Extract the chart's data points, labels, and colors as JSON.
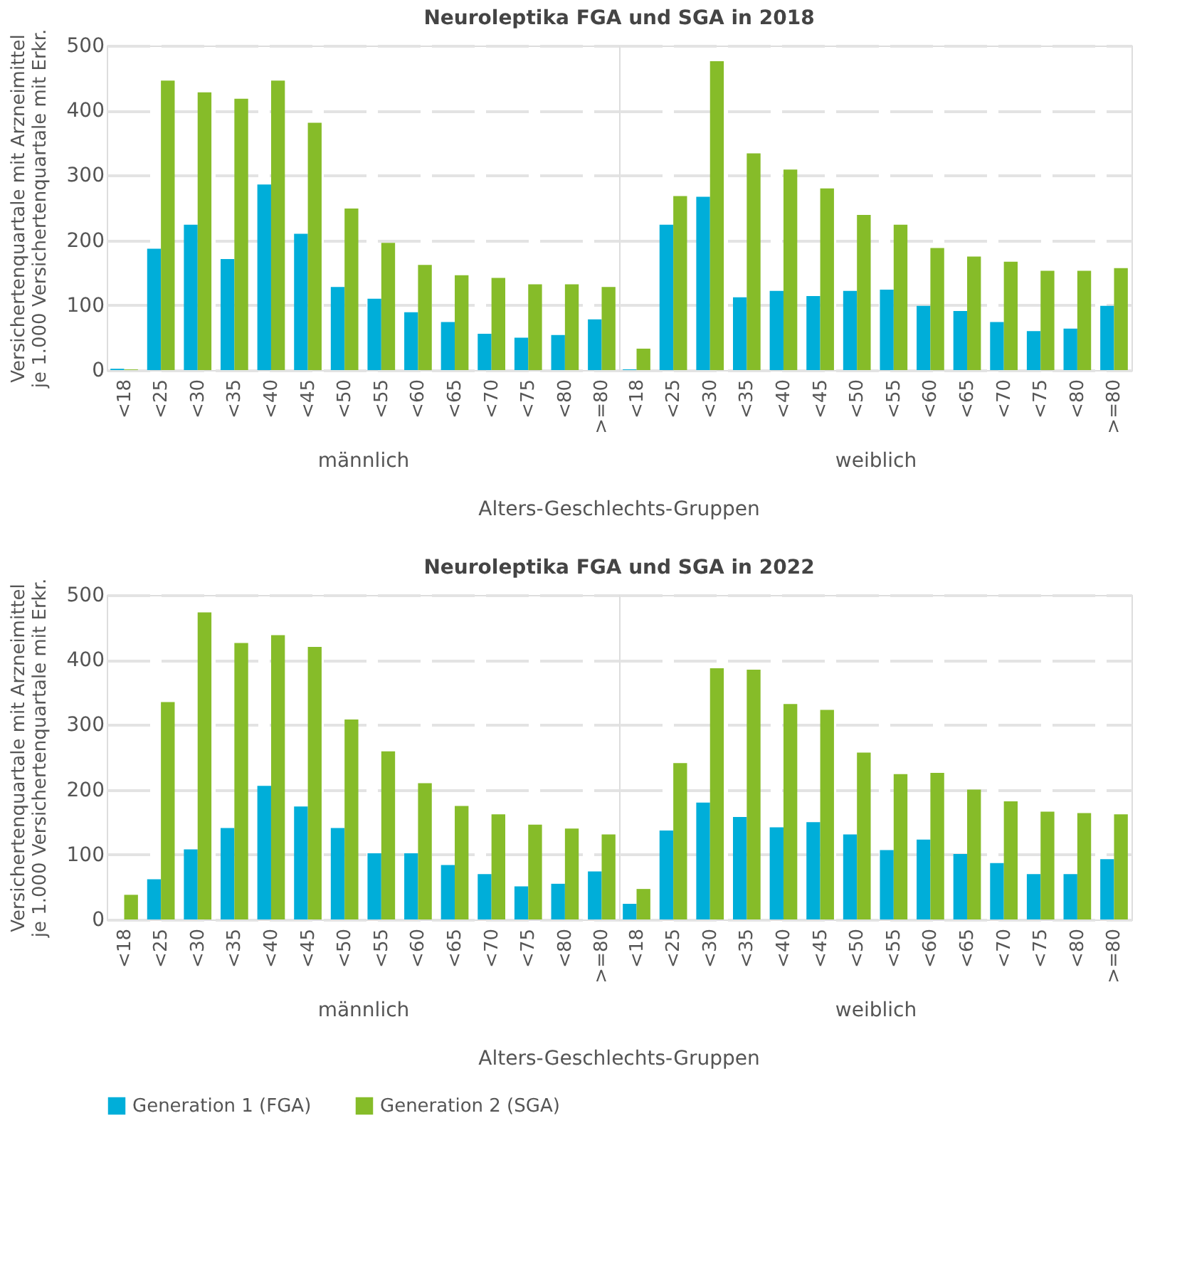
{
  "chart_data": [
    {
      "type": "bar",
      "title": "Neuroleptika FGA und SGA in 2018",
      "ylabel": "Versichertenquartale mit Arzneimittel\nje 1.000 Versichertenquartale mit Erkr.",
      "xlabel": "männlich",
      "annotations": [
        "Alters-Geschlechts-Gruppen"
      ],
      "categories": [
        "<18",
        "<25",
        "<30",
        "<35",
        "<40",
        "<45",
        "<50",
        "<55",
        "<60",
        "<65",
        "<70",
        "<75",
        "<80",
        ">=80"
      ],
      "series": [
        {
          "name": "Generation 1 (FGA)",
          "color": "#00aed9",
          "values": [
            2,
            187,
            224,
            171,
            286,
            210,
            128,
            110,
            89,
            74,
            56,
            50,
            54,
            78
          ]
        },
        {
          "name": "Generation 2 (SGA)",
          "color": "#86bc29",
          "values": [
            1,
            446,
            428,
            418,
            446,
            381,
            249,
            196,
            162,
            146,
            142,
            132,
            132,
            128
          ]
        }
      ],
      "ylim": [
        0,
        500
      ],
      "yticks": [
        0,
        100,
        200,
        300,
        400,
        500
      ],
      "grid": "y",
      "legend": "bottom"
    },
    {
      "type": "bar",
      "xlabel": "weiblich",
      "categories": [
        "<18",
        "<25",
        "<30",
        "<35",
        "<40",
        "<45",
        "<50",
        "<55",
        "<60",
        "<65",
        "<70",
        "<75",
        "<80",
        ">=80"
      ],
      "series": [
        {
          "name": "Generation 1 (FGA)",
          "color": "#00aed9",
          "values": [
            1,
            224,
            267,
            112,
            122,
            114,
            122,
            124,
            99,
            91,
            74,
            60,
            64,
            99
          ]
        },
        {
          "name": "Generation 2 (SGA)",
          "color": "#86bc29",
          "values": [
            33,
            268,
            476,
            334,
            309,
            280,
            239,
            224,
            188,
            175,
            167,
            153,
            153,
            157
          ]
        }
      ],
      "ylim": [
        0,
        500
      ],
      "yticks": [
        0,
        100,
        200,
        300,
        400,
        500
      ],
      "grid": "y",
      "tick_labels": "x",
      "legend": "bottom"
    },
    {
      "type": "bar",
      "title": "Neuroleptika FGA und SGA in 2022",
      "ylabel": "Versichertenquartale mit Arzneimittel\nje 1.000 Versichertenquartale mit Erkr.",
      "xlabel": "männlich",
      "annotations": [
        "Alters-Geschlechts-Gruppen"
      ],
      "categories": [
        "<18",
        "<25",
        "<30",
        "<35",
        "<40",
        "<45",
        "<50",
        "<55",
        "<60",
        "<65",
        "<70",
        "<75",
        "<80",
        ">=80"
      ],
      "series": [
        {
          "name": "Generation 1 (FGA)",
          "color": "#00aed9",
          "values": [
            null,
            62,
            108,
            141,
            206,
            174,
            141,
            102,
            102,
            84,
            70,
            51,
            55,
            74
          ]
        },
        {
          "name": "Generation 2 (SGA)",
          "color": "#86bc29",
          "values": [
            38,
            335,
            473,
            426,
            438,
            420,
            308,
            259,
            210,
            175,
            162,
            146,
            140,
            131
          ]
        }
      ],
      "ylim": [
        0,
        500
      ],
      "yticks": [
        0,
        100,
        200,
        300,
        400,
        500
      ],
      "grid": "y",
      "legend": "bottom"
    },
    {
      "type": "bar",
      "xlabel": "weiblich",
      "categories": [
        "<18",
        "<25",
        "<30",
        "<35",
        "<40",
        "<45",
        "<50",
        "<55",
        "<60",
        "<65",
        "<70",
        "<75",
        "<80",
        ">=80"
      ],
      "series": [
        {
          "name": "Generation 1 (FGA)",
          "color": "#00aed9",
          "values": [
            24,
            137,
            180,
            158,
            142,
            150,
            131,
            107,
            123,
            101,
            87,
            70,
            70,
            93
          ]
        },
        {
          "name": "Generation 2 (SGA)",
          "color": "#86bc29",
          "values": [
            47,
            241,
            387,
            385,
            332,
            323,
            257,
            224,
            226,
            200,
            182,
            166,
            164,
            162
          ]
        }
      ],
      "ylim": [
        0,
        500
      ],
      "yticks": [
        0,
        100,
        200,
        300,
        400,
        500
      ],
      "grid": "y",
      "tick_labels": "x",
      "legend": "bottom"
    }
  ]
}
